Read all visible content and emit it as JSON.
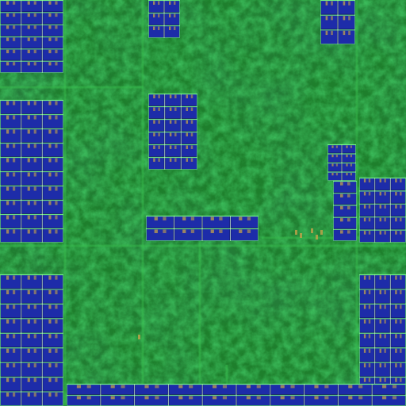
{
  "image": {
    "subject": "",
    "palette": {
      "substrate_dark": "#0a3a12",
      "substrate_mid": "#1e7f2c",
      "substrate_light": "#39c24f",
      "block_blue": "#1f2fb0",
      "block_blue_dark": "#121a66",
      "trace_green": "#79ff88",
      "trace_white": "#d9ffe0",
      "tab_gold": "#c6a24a"
    },
    "blocks": [
      {
        "name": "left-top-array",
        "cols": 3,
        "rows": 6
      },
      {
        "name": "left-mid-array",
        "cols": 3,
        "rows": 10
      },
      {
        "name": "left-bottom-array",
        "cols": 3,
        "rows": 9
      },
      {
        "name": "top-center-array",
        "cols": 2,
        "rows": 3
      },
      {
        "name": "top-right-array",
        "cols": 2,
        "rows": 3
      },
      {
        "name": "center-upper-array",
        "cols": 3,
        "rows": 6
      },
      {
        "name": "center-lower-array",
        "cols": 4,
        "rows": 2
      },
      {
        "name": "right-upper-small-array",
        "cols": 2,
        "rows": 4
      },
      {
        "name": "right-mid-array",
        "cols": 3,
        "rows": 5
      },
      {
        "name": "right-mid-left-column",
        "cols": 1,
        "rows": 5
      },
      {
        "name": "right-bottom-array",
        "cols": 3,
        "rows": 9
      },
      {
        "name": "bottom-strip-array",
        "cols": 10,
        "rows": 2
      }
    ]
  }
}
